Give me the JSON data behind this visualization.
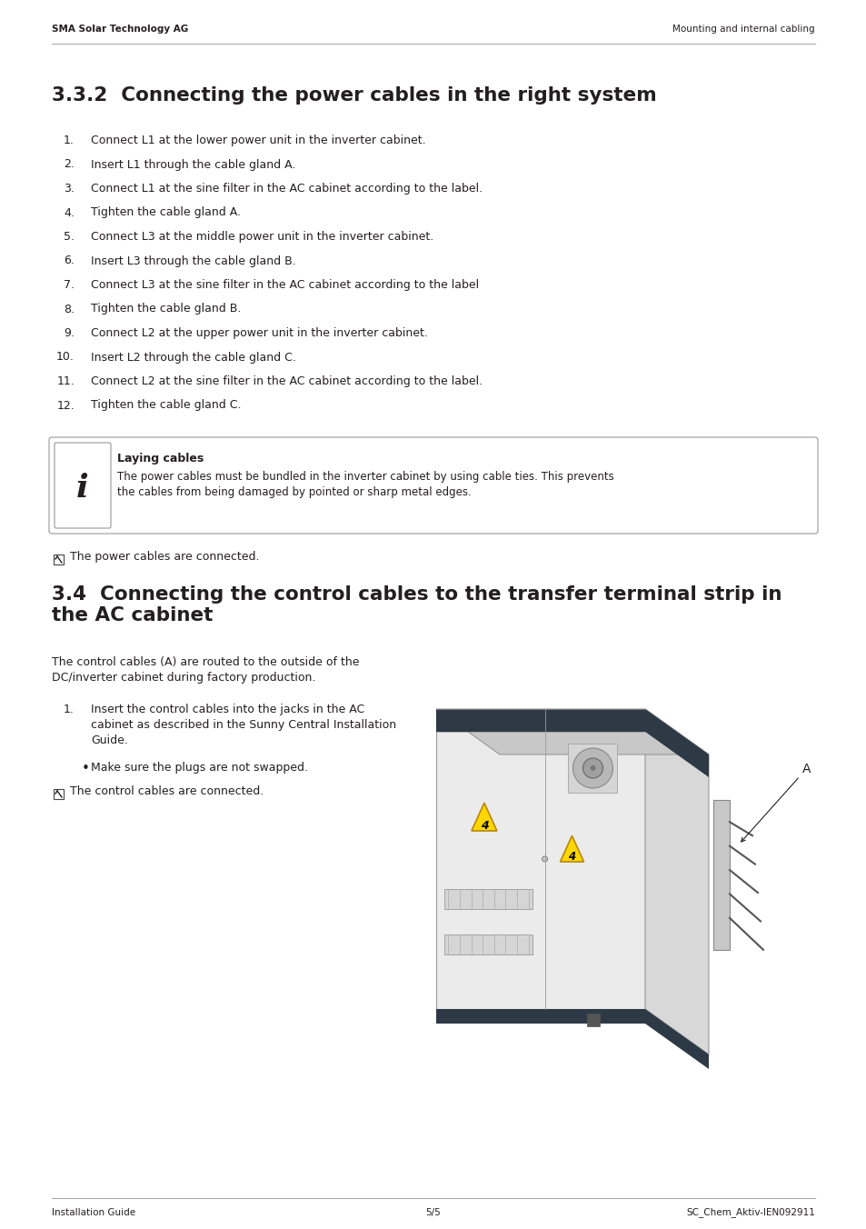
{
  "header_left": "SMA Solar Technology AG",
  "header_right": "Mounting and internal cabling",
  "footer_left": "Installation Guide",
  "footer_center": "5/5",
  "footer_right": "SC_Chem_Aktiv-IEN092911",
  "section1_title": "3.3.2  Connecting the power cables in the right system",
  "section1_items": [
    "Connect L1 at the lower power unit in the inverter cabinet.",
    "Insert L1 through the cable gland A.",
    "Connect L1 at the sine filter in the AC cabinet according to the label.",
    "Tighten the cable gland A.",
    "Connect L3 at the middle power unit in the inverter cabinet.",
    "Insert L3 through the cable gland B.",
    "Connect L3 at the sine filter in the AC cabinet according to the label",
    "Tighten the cable gland B.",
    "Connect L2 at the upper power unit in the inverter cabinet.",
    "Insert L2 through the cable gland C.",
    "Connect L2 at the sine filter in the AC cabinet according to the label.",
    "Tighten the cable gland C."
  ],
  "note_title": "Laying cables",
  "note_text": "The power cables must be bundled in the inverter cabinet by using cable ties. This prevents\nthe cables from being damaged by pointed or sharp metal edges.",
  "checkmark1": "The power cables are connected.",
  "section2_title": "3.4  Connecting the control cables to the transfer terminal strip in\nthe AC cabinet",
  "section2_intro": "The control cables (A) are routed to the outside of the\nDC/inverter cabinet during factory production.",
  "section2_item1": "Insert the control cables into the jacks in the AC\ncabinet as described in the Sunny Central Installation\nGuide.",
  "bullet_item": "Make sure the plugs are not swapped.",
  "checkmark2": "The control cables are connected.",
  "bg_color": "#ffffff",
  "text_color": "#231f20",
  "header_color": "#231f20"
}
